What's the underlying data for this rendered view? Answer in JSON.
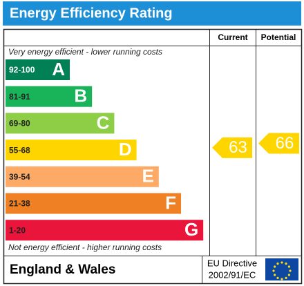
{
  "header": {
    "title": "Energy Efficiency Rating"
  },
  "columns": [
    "Current",
    "Potential"
  ],
  "top_note": "Very energy efficient - lower running costs",
  "bottom_note": "Not energy efficient - higher running costs",
  "bands": [
    {
      "range": "92-100",
      "letter": "A",
      "color": "#008054"
    },
    {
      "range": "81-91",
      "letter": "B",
      "color": "#19b459"
    },
    {
      "range": "69-80",
      "letter": "C",
      "color": "#8dce46"
    },
    {
      "range": "55-68",
      "letter": "D",
      "color": "#ffd500"
    },
    {
      "range": "39-54",
      "letter": "E",
      "color": "#fcaa65"
    },
    {
      "range": "21-38",
      "letter": "F",
      "color": "#ef8023"
    },
    {
      "range": "1-20",
      "letter": "G",
      "color": "#e9153b"
    }
  ],
  "current": {
    "value": 63
  },
  "potential": {
    "value": 66
  },
  "footer": {
    "region": "England & Wales",
    "directive_line1": "EU Directive",
    "directive_line2": "2002/91/EC"
  }
}
